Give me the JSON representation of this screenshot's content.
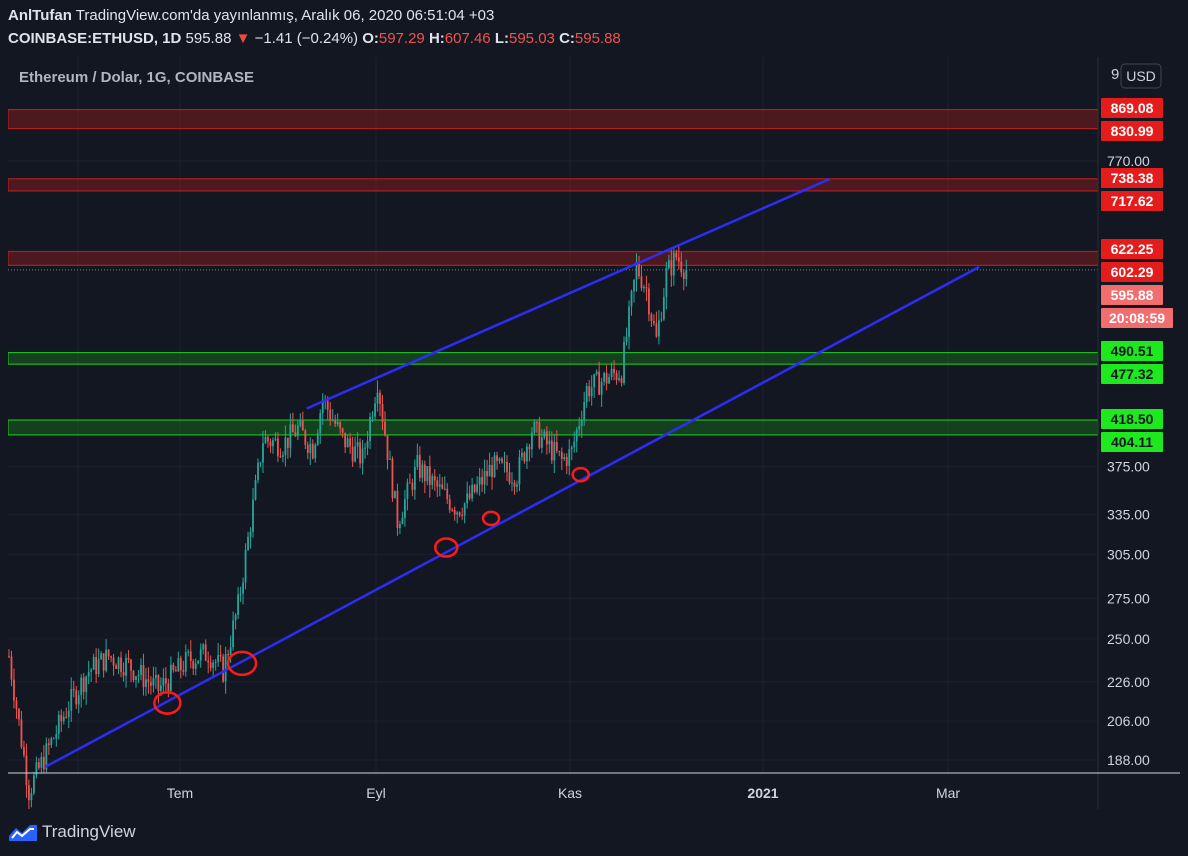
{
  "header": {
    "user": "AnlTufan",
    "published": "TradingView.com'da yayınlanmış, Aralık 06, 2020 06:51:04 +03",
    "symbol": "COINBASE:ETHUSD, 1D",
    "last": "595.88",
    "arrow": "▼",
    "change": "−1.41 (−0.24%)",
    "o_label": "O:",
    "o_val": "597.29",
    "h_label": "H:",
    "h_val": "607.46",
    "l_label": "L:",
    "l_val": "595.03",
    "c_label": "C:",
    "c_val": "595.88"
  },
  "chart_title": "Ethereum / Dolar, 1G, COINBASE",
  "currency_button": "USD",
  "footer": {
    "brand": "TradingView"
  },
  "colors": {
    "background": "#131722",
    "up_candle": "#26a69a",
    "down_candle": "#ef5350",
    "trend_line": "#2d2df5",
    "resistance": "#b71c1c",
    "support": "#1db81d",
    "marker": "#ff1a1a"
  },
  "chart_data": {
    "type": "candlestick",
    "title": "Ethereum / Dolar, 1G, COINBASE",
    "y_scale": "log",
    "y_ticks": [
      188.0,
      206.0,
      226.0,
      250.0,
      275.0,
      305.0,
      335.0,
      375.0,
      770.0
    ],
    "x_ticks": [
      "Tem",
      "Eyl",
      "Kas",
      "2021",
      "Mar"
    ],
    "price_labels": [
      {
        "value": "869.08",
        "type": "resistance"
      },
      {
        "value": "830.99",
        "type": "resistance"
      },
      {
        "value": "738.38",
        "type": "resistance"
      },
      {
        "value": "717.62",
        "type": "resistance"
      },
      {
        "value": "622.25",
        "type": "resistance"
      },
      {
        "value": "602.29",
        "type": "resistance"
      },
      {
        "value": "595.88",
        "type": "last"
      },
      {
        "value": "20:08:59",
        "type": "countdown"
      },
      {
        "value": "490.51",
        "type": "support"
      },
      {
        "value": "477.32",
        "type": "support"
      },
      {
        "value": "418.50",
        "type": "support"
      },
      {
        "value": "404.11",
        "type": "support"
      }
    ],
    "zones": [
      {
        "low": 830.99,
        "high": 869.08,
        "type": "resistance"
      },
      {
        "low": 717.62,
        "high": 738.38,
        "type": "resistance"
      },
      {
        "low": 602.29,
        "high": 622.25,
        "type": "resistance"
      },
      {
        "low": 477.32,
        "high": 490.51,
        "type": "support"
      },
      {
        "low": 404.11,
        "high": 418.5,
        "type": "support"
      }
    ],
    "candle_keypoints": [
      {
        "day": 0,
        "price": 240
      },
      {
        "day": 8,
        "price": 175
      },
      {
        "day": 24,
        "price": 214
      },
      {
        "day": 32,
        "price": 232
      },
      {
        "day": 40,
        "price": 240
      },
      {
        "day": 48,
        "price": 235
      },
      {
        "day": 60,
        "price": 222
      },
      {
        "day": 72,
        "price": 238
      },
      {
        "day": 80,
        "price": 242
      },
      {
        "day": 86,
        "price": 232
      },
      {
        "day": 92,
        "price": 270
      },
      {
        "day": 102,
        "price": 400
      },
      {
        "day": 110,
        "price": 395
      },
      {
        "day": 116,
        "price": 410
      },
      {
        "day": 122,
        "price": 392
      },
      {
        "day": 126,
        "price": 440
      },
      {
        "day": 134,
        "price": 400
      },
      {
        "day": 142,
        "price": 382
      },
      {
        "day": 148,
        "price": 460
      },
      {
        "day": 156,
        "price": 330
      },
      {
        "day": 164,
        "price": 375
      },
      {
        "day": 174,
        "price": 352
      },
      {
        "day": 180,
        "price": 340
      },
      {
        "day": 184,
        "price": 345
      },
      {
        "day": 194,
        "price": 375
      },
      {
        "day": 204,
        "price": 368
      },
      {
        "day": 210,
        "price": 410
      },
      {
        "day": 216,
        "price": 395
      },
      {
        "day": 222,
        "price": 380
      },
      {
        "day": 226,
        "price": 388
      },
      {
        "day": 232,
        "price": 450
      },
      {
        "day": 240,
        "price": 462
      },
      {
        "day": 246,
        "price": 470
      },
      {
        "day": 252,
        "price": 600
      },
      {
        "day": 256,
        "price": 570
      },
      {
        "day": 260,
        "price": 505
      },
      {
        "day": 264,
        "price": 590
      },
      {
        "day": 268,
        "price": 615
      },
      {
        "day": 272,
        "price": 595.88
      }
    ],
    "trend_lines": [
      {
        "from": {
          "day": 15,
          "price": 185
        },
        "to": {
          "day": 390,
          "price": 600
        }
      },
      {
        "from": {
          "day": 120,
          "price": 430
        },
        "to": {
          "day": 330,
          "price": 738
        }
      }
    ],
    "markers": [
      {
        "day": 64,
        "price": 215
      },
      {
        "day": 94,
        "price": 236
      },
      {
        "day": 176,
        "price": 310
      },
      {
        "day": 194,
        "price": 332
      },
      {
        "day": 230,
        "price": 368
      }
    ]
  }
}
